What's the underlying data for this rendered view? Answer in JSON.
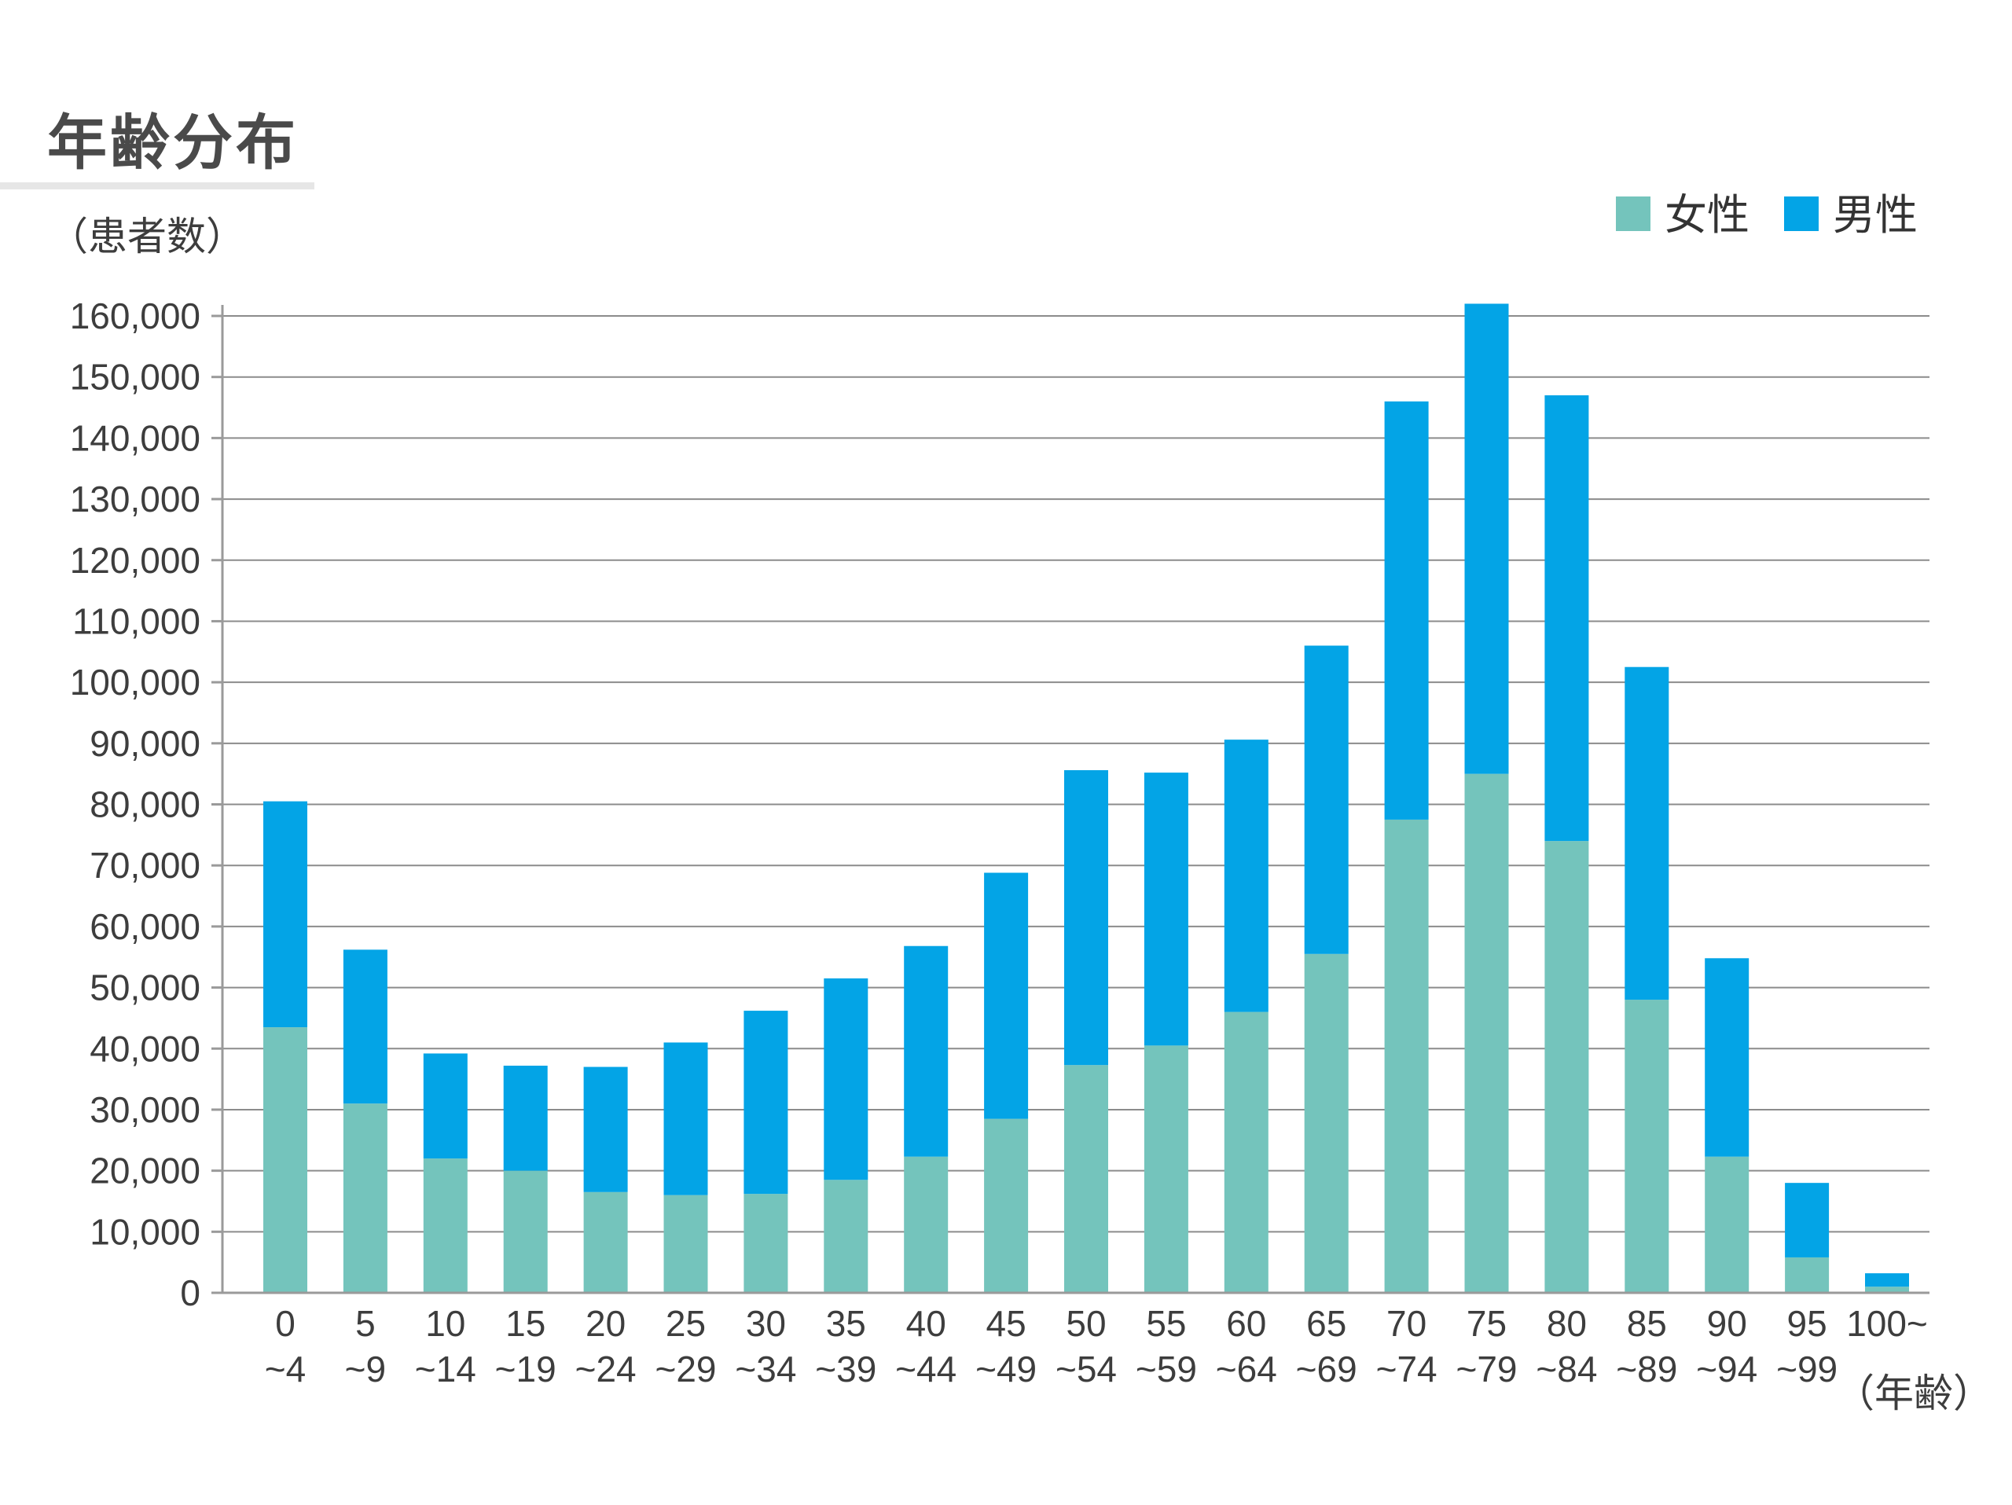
{
  "title": "年齢分布",
  "colors": {
    "female": "#74c4bc",
    "male": "#03a4e6",
    "grid": "#8c8c8c",
    "axis": "#9a9a9a",
    "title_underline": "#e6e6e6"
  },
  "chart_data": {
    "type": "bar",
    "stacked": true,
    "ylabel": "（患者数）",
    "xlabel": "（年齢）",
    "ylim": [
      0,
      160000
    ],
    "yticks": [
      "0",
      "10,000",
      "20,000",
      "30,000",
      "40,000",
      "50,000",
      "60,000",
      "70,000",
      "80,000",
      "90,000",
      "100,000",
      "110,000",
      "120,000",
      "130,000",
      "140,000",
      "150,000",
      "160,000"
    ],
    "grid": true,
    "legend_position": "top-right",
    "categories": [
      {
        "top": "0",
        "bottom": "~4"
      },
      {
        "top": "5",
        "bottom": "~9"
      },
      {
        "top": "10",
        "bottom": "~14"
      },
      {
        "top": "15",
        "bottom": "~19"
      },
      {
        "top": "20",
        "bottom": "~24"
      },
      {
        "top": "25",
        "bottom": "~29"
      },
      {
        "top": "30",
        "bottom": "~34"
      },
      {
        "top": "35",
        "bottom": "~39"
      },
      {
        "top": "40",
        "bottom": "~44"
      },
      {
        "top": "45",
        "bottom": "~49"
      },
      {
        "top": "50",
        "bottom": "~54"
      },
      {
        "top": "55",
        "bottom": "~59"
      },
      {
        "top": "60",
        "bottom": "~64"
      },
      {
        "top": "65",
        "bottom": "~69"
      },
      {
        "top": "70",
        "bottom": "~74"
      },
      {
        "top": "75",
        "bottom": "~79"
      },
      {
        "top": "80",
        "bottom": "~84"
      },
      {
        "top": "85",
        "bottom": "~89"
      },
      {
        "top": "90",
        "bottom": "~94"
      },
      {
        "top": "95",
        "bottom": "~99"
      },
      {
        "top": "100~",
        "bottom": ""
      }
    ],
    "series": [
      {
        "name": "女性",
        "color": "#74c4bc",
        "values": [
          43500,
          31000,
          22000,
          20000,
          16500,
          16000,
          16200,
          18500,
          22300,
          28500,
          37300,
          40500,
          46000,
          55500,
          77500,
          85000,
          74000,
          48000,
          22300,
          5800,
          1000
        ]
      },
      {
        "name": "男性",
        "color": "#03a4e6",
        "values": [
          37000,
          25200,
          17200,
          17200,
          20500,
          25000,
          30000,
          33000,
          34500,
          40300,
          48300,
          44700,
          44600,
          50500,
          68500,
          77000,
          73000,
          54500,
          32500,
          12200,
          2200
        ]
      }
    ]
  }
}
